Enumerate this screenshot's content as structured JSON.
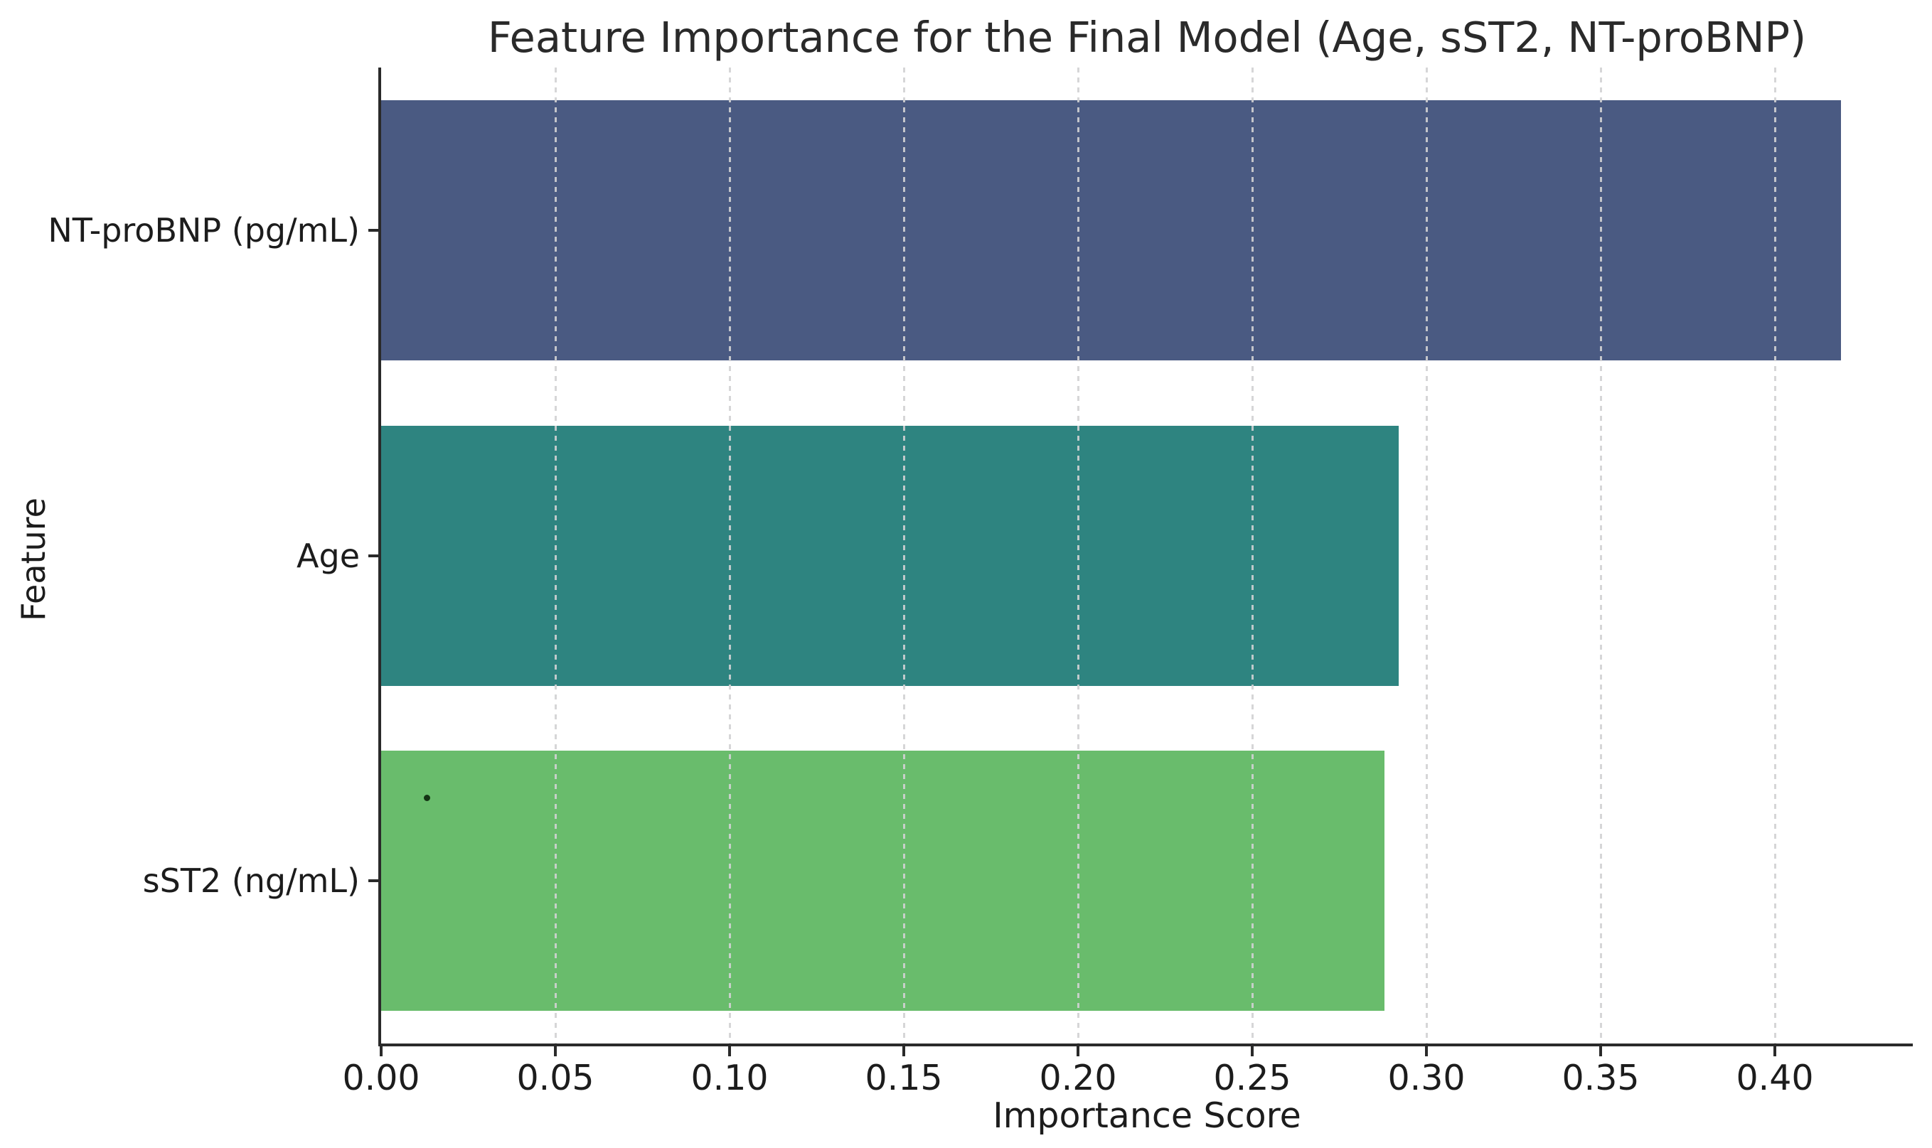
{
  "chart_data": {
    "type": "bar",
    "orientation": "horizontal",
    "title": "Feature Importance for the Final Model (Age, sST2, NT-proBNP)",
    "xlabel": "Importance Score",
    "ylabel": "Feature",
    "categories": [
      "NT-proBNP (pg/mL)",
      "Age",
      "sST2 (ng/mL)"
    ],
    "values": [
      0.419,
      0.292,
      0.288
    ],
    "bar_colors": [
      "#4a5a82",
      "#2e8480",
      "#69bc6c"
    ],
    "xlim": [
      0,
      0.44
    ],
    "xticks": [
      0.0,
      0.05,
      0.1,
      0.15,
      0.2,
      0.25,
      0.3,
      0.35,
      0.4
    ],
    "xtick_labels": [
      "0.00",
      "0.05",
      "0.10",
      "0.15",
      "0.20",
      "0.25",
      "0.30",
      "0.35",
      "0.40"
    ],
    "grid": "vertical dashed gridlines drawn over bars",
    "legend": "none",
    "annotations": [
      {
        "label": "stray dot artifact",
        "x_value": 0.013,
        "category_index": 2
      }
    ]
  },
  "style_colors": {
    "background": "#ffffff",
    "spine": "#2a2a2a",
    "text": "#1c1c1c",
    "gridline": "#d1d1d3"
  }
}
